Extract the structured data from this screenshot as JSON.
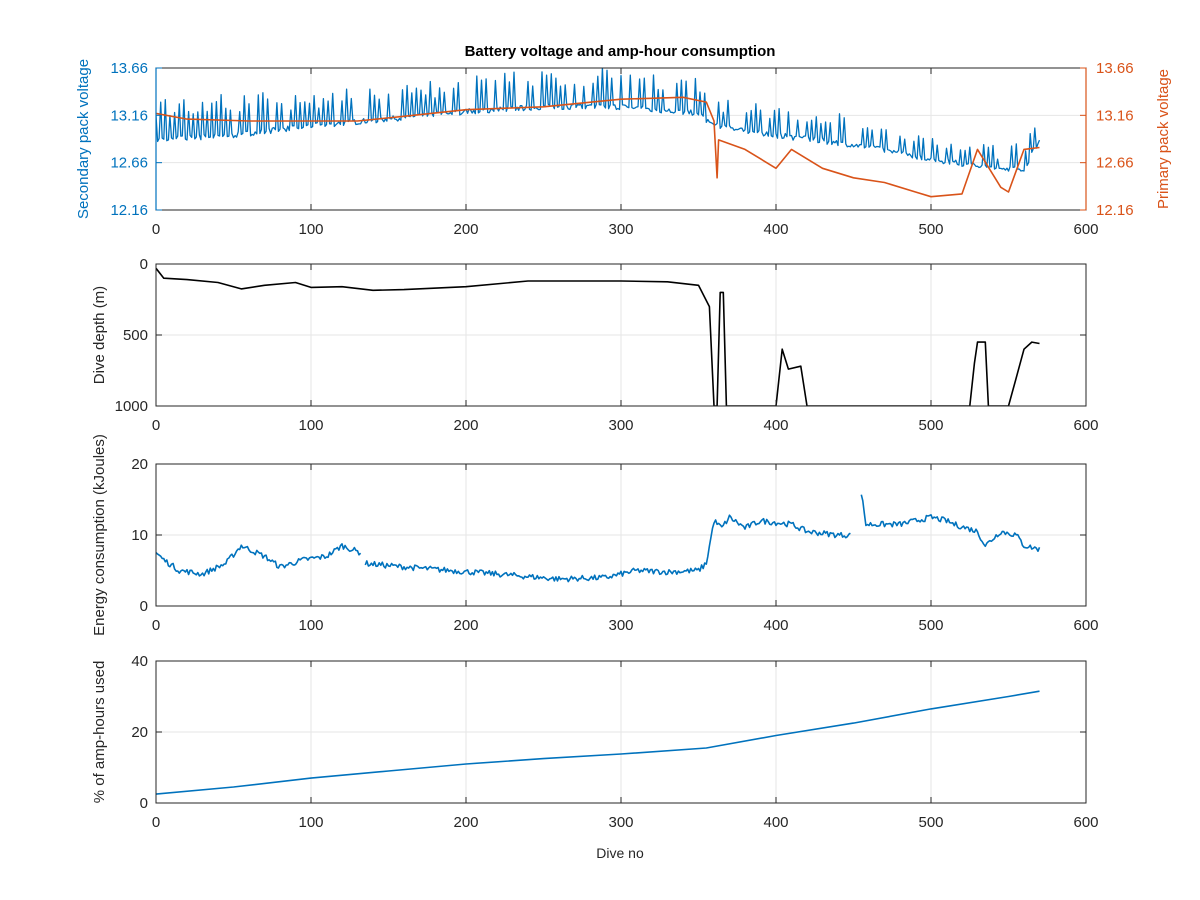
{
  "figure": {
    "title": "Battery voltage and amp-hour consumption",
    "xlabel": "Dive no"
  },
  "colors": {
    "blue": "#0072BD",
    "orange": "#D95319",
    "black": "#000000",
    "grid": "#e6e6e6",
    "axis": "#262626"
  },
  "chart_data": [
    {
      "type": "line",
      "id": "voltage",
      "ylabel": "Secondary pack voltage",
      "ylabel_right": "Primary pack voltage",
      "xlim": [
        0,
        600
      ],
      "ylim": [
        12.16,
        13.66
      ],
      "ylim_right": [
        12.16,
        13.66
      ],
      "xticks": [
        0,
        100,
        200,
        300,
        400,
        500,
        600
      ],
      "yticks": [
        12.16,
        12.66,
        13.16,
        13.66
      ],
      "ytick_labels": [
        "12.16",
        "12.66",
        "13.16",
        "13.66"
      ],
      "yticks_right": [
        12.16,
        12.66,
        13.16,
        13.66
      ],
      "ytick_labels_right": [
        "12.16",
        "12.66",
        "13.16",
        "13.66"
      ],
      "grid": true,
      "series": [
        {
          "color": "#0072BD",
          "axis": "left",
          "base": [
            [
              0,
              12.9
            ],
            [
              50,
              12.95
            ],
            [
              100,
              13.05
            ],
            [
              150,
              13.12
            ],
            [
              200,
              13.2
            ],
            [
              250,
              13.25
            ],
            [
              300,
              13.25
            ],
            [
              350,
              13.18
            ],
            [
              360,
              13.05
            ],
            [
              400,
              12.95
            ],
            [
              450,
              12.85
            ],
            [
              500,
              12.7
            ],
            [
              540,
              12.6
            ],
            [
              560,
              12.6
            ],
            [
              570,
              12.9
            ]
          ],
          "spikes": [
            {
              "from": 0,
              "to": 80,
              "step": 3,
              "amp": 0.45
            },
            {
              "from": 80,
              "to": 200,
              "step": 3,
              "amp": 0.35
            },
            {
              "from": 200,
              "to": 355,
              "step": 3,
              "amp": 0.4
            },
            {
              "from": 360,
              "to": 460,
              "step": 3,
              "amp": 0.3
            },
            {
              "from": 460,
              "to": 570,
              "step": 3,
              "amp": 0.25
            }
          ]
        },
        {
          "color": "#D95319",
          "axis": "right",
          "points": [
            [
              0,
              13.18
            ],
            [
              20,
              13.12
            ],
            [
              60,
              13.1
            ],
            [
              100,
              13.1
            ],
            [
              130,
              13.1
            ],
            [
              160,
              13.15
            ],
            [
              200,
              13.22
            ],
            [
              250,
              13.25
            ],
            [
              300,
              13.33
            ],
            [
              340,
              13.35
            ],
            [
              355,
              13.3
            ],
            [
              360,
              13.1
            ],
            [
              362,
              12.5
            ],
            [
              363,
              12.9
            ],
            [
              380,
              12.8
            ],
            [
              400,
              12.6
            ],
            [
              410,
              12.8
            ],
            [
              430,
              12.6
            ],
            [
              450,
              12.5
            ],
            [
              470,
              12.45
            ],
            [
              490,
              12.35
            ],
            [
              500,
              12.3
            ],
            [
              520,
              12.33
            ],
            [
              530,
              12.8
            ],
            [
              545,
              12.4
            ],
            [
              550,
              12.35
            ],
            [
              560,
              12.8
            ],
            [
              570,
              12.82
            ]
          ]
        }
      ]
    },
    {
      "type": "line",
      "id": "depth",
      "ylabel": "Dive depth (m)",
      "xlim": [
        0,
        600
      ],
      "ylim": [
        0,
        1000
      ],
      "y_reversed": true,
      "xticks": [
        0,
        100,
        200,
        300,
        400,
        500,
        600
      ],
      "yticks": [
        0,
        500,
        1000
      ],
      "ytick_labels": [
        "0",
        "500",
        "1000"
      ],
      "grid": true,
      "series": [
        {
          "color": "#000000",
          "points": [
            [
              0,
              30
            ],
            [
              5,
              100
            ],
            [
              20,
              110
            ],
            [
              40,
              130
            ],
            [
              55,
              175
            ],
            [
              70,
              150
            ],
            [
              90,
              130
            ],
            [
              100,
              165
            ],
            [
              120,
              160
            ],
            [
              140,
              185
            ],
            [
              160,
              180
            ],
            [
              200,
              160
            ],
            [
              240,
              120
            ],
            [
              300,
              120
            ],
            [
              330,
              125
            ],
            [
              350,
              150
            ],
            [
              357,
              300
            ],
            [
              360,
              1000
            ],
            [
              362,
              1000
            ],
            [
              364,
              200
            ],
            [
              366,
              200
            ],
            [
              368,
              1000
            ],
            [
              400,
              1000
            ],
            [
              404,
              600
            ],
            [
              408,
              740
            ],
            [
              416,
              720
            ],
            [
              420,
              1000
            ],
            [
              525,
              1000
            ],
            [
              528,
              700
            ],
            [
              530,
              550
            ],
            [
              535,
              550
            ],
            [
              537,
              1000
            ],
            [
              550,
              1000
            ],
            [
              555,
              800
            ],
            [
              560,
              600
            ],
            [
              565,
              550
            ],
            [
              570,
              560
            ]
          ]
        }
      ]
    },
    {
      "type": "line",
      "id": "energy",
      "ylabel": "Energy consumption (kJoules)",
      "xlim": [
        0,
        600
      ],
      "ylim": [
        0,
        20
      ],
      "xticks": [
        0,
        100,
        200,
        300,
        400,
        500,
        600
      ],
      "yticks": [
        0,
        10,
        20
      ],
      "ytick_labels": [
        "0",
        "10",
        "20"
      ],
      "grid": true,
      "series": [
        {
          "color": "#0072BD",
          "segments": [
            [
              [
                0,
                7.5
              ],
              [
                5,
                6.5
              ],
              [
                15,
                5.0
              ],
              [
                30,
                4.5
              ],
              [
                45,
                6.0
              ],
              [
                55,
                8.5
              ],
              [
                70,
                7.0
              ],
              [
                80,
                5.5
              ],
              [
                95,
                6.5
              ],
              [
                110,
                7.0
              ],
              [
                120,
                8.5
              ],
              [
                132,
                7.5
              ]
            ],
            [
              [
                135,
                6.0
              ],
              [
                160,
                5.5
              ],
              [
                190,
                5.0
              ],
              [
                220,
                4.5
              ],
              [
                260,
                3.8
              ],
              [
                290,
                4.0
              ],
              [
                310,
                5.0
              ],
              [
                330,
                4.8
              ],
              [
                350,
                5.0
              ],
              [
                355,
                6.0
              ],
              [
                360,
                12.0
              ],
              [
                365,
                11.0
              ],
              [
                370,
                12.5
              ],
              [
                380,
                11.0
              ],
              [
                390,
                12.0
              ],
              [
                410,
                11.5
              ],
              [
                420,
                10.5
              ],
              [
                440,
                10.0
              ],
              [
                448,
                10.0
              ]
            ],
            [
              [
                455,
                16.0
              ],
              [
                458,
                11.5
              ],
              [
                480,
                11.5
              ],
              [
                500,
                12.5
              ],
              [
                510,
                12.0
              ],
              [
                515,
                11.5
              ],
              [
                530,
                10.5
              ],
              [
                535,
                8.5
              ],
              [
                545,
                10.5
              ],
              [
                555,
                10.0
              ],
              [
                560,
                8.5
              ],
              [
                570,
                8.0
              ]
            ]
          ],
          "noise": 0.8
        }
      ]
    },
    {
      "type": "line",
      "id": "amphours",
      "ylabel": "% of amp-hours used",
      "xlabel": "Dive no",
      "xlim": [
        0,
        600
      ],
      "ylim": [
        0,
        40
      ],
      "xticks": [
        0,
        100,
        200,
        300,
        400,
        500,
        600
      ],
      "yticks": [
        0,
        20,
        40
      ],
      "ytick_labels": [
        "0",
        "20",
        "40"
      ],
      "grid": true,
      "series": [
        {
          "color": "#0072BD",
          "points": [
            [
              0,
              2.5
            ],
            [
              50,
              4.5
            ],
            [
              100,
              7.0
            ],
            [
              150,
              9.0
            ],
            [
              200,
              11.0
            ],
            [
              250,
              12.5
            ],
            [
              300,
              13.8
            ],
            [
              355,
              15.5
            ],
            [
              400,
              19.0
            ],
            [
              450,
              22.5
            ],
            [
              500,
              26.5
            ],
            [
              550,
              30.0
            ],
            [
              570,
              31.5
            ]
          ]
        }
      ]
    }
  ]
}
